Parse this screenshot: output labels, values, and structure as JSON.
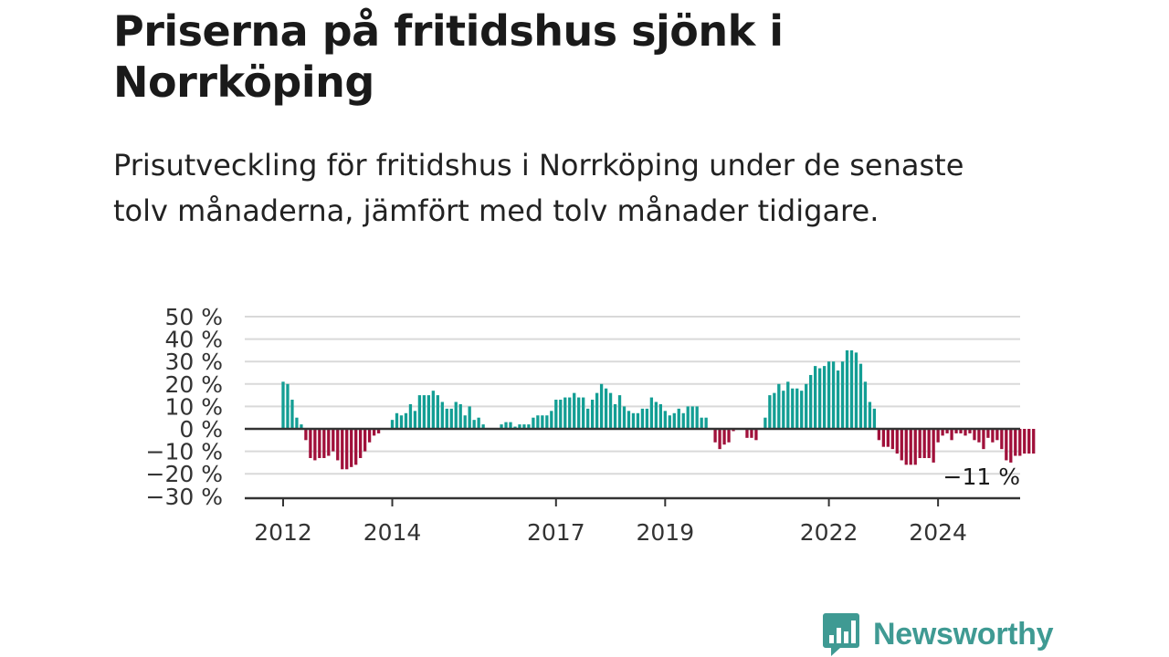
{
  "title": "Priserna på fritidshus sjönk i Norrköping",
  "subtitle": "Prisutveckling för fritidshus i Norrköping under de senaste tolv månaderna, jämfört med tolv månader tidigare.",
  "logo": {
    "text": "Newsworthy",
    "icon": "bar-chart-speech-bubble-icon"
  },
  "colors": {
    "positive": "#139e94",
    "negative": "#a0103a",
    "grid": "#d9d9d9",
    "zero_line": "#333333",
    "text": "#333333",
    "brand": "#3f9a93"
  },
  "chart_data": {
    "type": "bar",
    "title": "",
    "xlabel": "",
    "ylabel": "",
    "ylim": [
      -30,
      50
    ],
    "y_ticks": [
      50,
      40,
      30,
      20,
      10,
      0,
      -10,
      -20,
      -30
    ],
    "y_tick_labels": [
      "50 %",
      "40 %",
      "30 %",
      "20 %",
      "10 %",
      "0 %",
      "−10 %",
      "−20 %",
      "−30 %"
    ],
    "x_tick_labels": [
      "2012",
      "2014",
      "2017",
      "2019",
      "2022",
      "2024"
    ],
    "x_tick_dates": [
      "2012-01",
      "2014-01",
      "2017-01",
      "2019-01",
      "2022-01",
      "2024-01"
    ],
    "grid": true,
    "legend": "none",
    "start": "2012-01",
    "end_label": "−11 %",
    "series": [
      {
        "values": [
          21,
          20,
          13,
          5,
          2,
          -5,
          -13,
          -14,
          -13,
          -13,
          -12,
          -10,
          -14,
          -18,
          -18,
          -17,
          -16,
          -13,
          -10,
          -6,
          -3,
          -2,
          0,
          0,
          4,
          7,
          6,
          7,
          11,
          8,
          15,
          15,
          15,
          17,
          15,
          12,
          9,
          9,
          12,
          11,
          6,
          10,
          4,
          5,
          2,
          0,
          0,
          0,
          2,
          3,
          3,
          1,
          2,
          2,
          2,
          5,
          6,
          6,
          6,
          8,
          13,
          13,
          14,
          14,
          16,
          14,
          14,
          9,
          13,
          16,
          20,
          18,
          16,
          11,
          15,
          10,
          8,
          7,
          7,
          9,
          9,
          14,
          12,
          11,
          8,
          6,
          7,
          9,
          7,
          10,
          10,
          10,
          5,
          5,
          0,
          -6,
          -9,
          -7,
          -6,
          -1,
          0,
          0,
          -4,
          -4,
          -5,
          0,
          5,
          15,
          16,
          20,
          17,
          21,
          18,
          18,
          17,
          20,
          24,
          28,
          27,
          28,
          30,
          30,
          26,
          30,
          35,
          35,
          34,
          29,
          21,
          12,
          9,
          -5,
          -8,
          -8,
          -9,
          -11,
          -14,
          -16,
          -16,
          -16,
          -13,
          -13,
          -13,
          -15,
          -6,
          -3,
          -2,
          -5,
          -2,
          -2,
          -3,
          -2,
          -5,
          -6,
          -9,
          -4,
          -6,
          -5,
          -9,
          -14,
          -15,
          -12,
          -12,
          -11,
          -11,
          -11
        ]
      }
    ]
  }
}
